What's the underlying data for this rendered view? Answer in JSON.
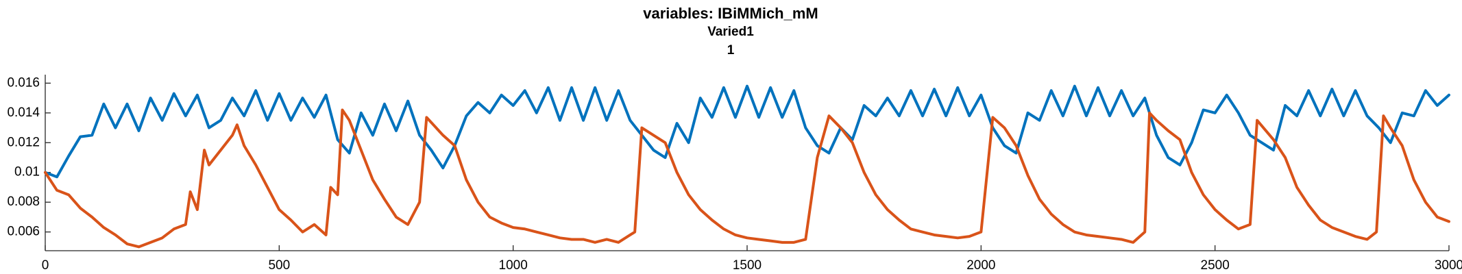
{
  "chart_data": {
    "type": "line",
    "title": "variables: IBiMMich_mM",
    "subtitles": [
      "Varied1",
      "1"
    ],
    "xlim": [
      0,
      3000
    ],
    "xticks": [
      0,
      500,
      1000,
      1500,
      2000,
      2500,
      3000
    ],
    "ylim": [
      0.00474,
      0.01657
    ],
    "yticks": [
      0.006,
      0.008,
      0.01,
      0.012,
      0.014,
      0.016
    ],
    "grid": false,
    "series": [
      {
        "color": "#0072BD",
        "x": [
          0,
          25,
          50,
          75,
          100,
          125,
          150,
          175,
          200,
          225,
          250,
          275,
          300,
          325,
          350,
          375,
          400,
          425,
          450,
          475,
          500,
          525,
          550,
          575,
          600,
          625,
          650,
          675,
          700,
          725,
          750,
          775,
          800,
          825,
          850,
          875,
          900,
          925,
          950,
          975,
          1000,
          1025,
          1050,
          1075,
          1100,
          1125,
          1150,
          1175,
          1200,
          1225,
          1250,
          1275,
          1300,
          1325,
          1350,
          1375,
          1400,
          1425,
          1450,
          1475,
          1500,
          1525,
          1550,
          1575,
          1600,
          1625,
          1650,
          1675,
          1700,
          1725,
          1750,
          1775,
          1800,
          1825,
          1850,
          1875,
          1900,
          1925,
          1950,
          1975,
          2000,
          2025,
          2050,
          2075,
          2100,
          2125,
          2150,
          2175,
          2200,
          2225,
          2250,
          2275,
          2300,
          2325,
          2350,
          2375,
          2400,
          2425,
          2450,
          2475,
          2500,
          2525,
          2550,
          2575,
          2600,
          2625,
          2650,
          2675,
          2700,
          2725,
          2750,
          2775,
          2800,
          2825,
          2850,
          2875,
          2900,
          2925,
          2950,
          2975,
          3000
        ],
        "values": [
          0.01,
          0.0097,
          0.0111,
          0.0124,
          0.0125,
          0.0146,
          0.013,
          0.0146,
          0.0128,
          0.015,
          0.0135,
          0.0153,
          0.0138,
          0.0152,
          0.013,
          0.0135,
          0.015,
          0.0138,
          0.0155,
          0.0135,
          0.0153,
          0.0135,
          0.015,
          0.0137,
          0.0152,
          0.0122,
          0.0113,
          0.014,
          0.0125,
          0.0146,
          0.0128,
          0.0148,
          0.0125,
          0.0115,
          0.0103,
          0.0118,
          0.0138,
          0.0147,
          0.014,
          0.0152,
          0.0145,
          0.0155,
          0.014,
          0.0157,
          0.0135,
          0.0157,
          0.0135,
          0.0157,
          0.0135,
          0.0155,
          0.0135,
          0.0125,
          0.0115,
          0.011,
          0.0133,
          0.012,
          0.015,
          0.0137,
          0.0157,
          0.0137,
          0.0158,
          0.0137,
          0.0157,
          0.0137,
          0.0155,
          0.013,
          0.0118,
          0.0113,
          0.013,
          0.0122,
          0.0145,
          0.0138,
          0.015,
          0.0138,
          0.0155,
          0.0138,
          0.0156,
          0.0138,
          0.0157,
          0.0138,
          0.0152,
          0.013,
          0.0118,
          0.0113,
          0.014,
          0.0135,
          0.0155,
          0.0138,
          0.0158,
          0.0138,
          0.0157,
          0.0138,
          0.0155,
          0.0138,
          0.015,
          0.0125,
          0.011,
          0.0105,
          0.012,
          0.0142,
          0.014,
          0.0152,
          0.014,
          0.0125,
          0.012,
          0.0115,
          0.0145,
          0.0138,
          0.0155,
          0.0138,
          0.0156,
          0.0138,
          0.0155,
          0.0138,
          0.013,
          0.012,
          0.014,
          0.0138,
          0.0155,
          0.0145,
          0.0152
        ]
      },
      {
        "color": "#D95319",
        "x": [
          0,
          25,
          50,
          75,
          100,
          125,
          150,
          175,
          200,
          225,
          250,
          275,
          300,
          310,
          325,
          340,
          350,
          375,
          400,
          410,
          425,
          450,
          475,
          500,
          525,
          550,
          575,
          600,
          610,
          625,
          635,
          650,
          675,
          700,
          725,
          750,
          775,
          800,
          815,
          850,
          875,
          900,
          925,
          950,
          975,
          1000,
          1025,
          1050,
          1075,
          1100,
          1125,
          1150,
          1175,
          1200,
          1225,
          1250,
          1260,
          1275,
          1300,
          1325,
          1350,
          1375,
          1400,
          1425,
          1450,
          1475,
          1500,
          1525,
          1550,
          1575,
          1600,
          1625,
          1650,
          1675,
          1700,
          1725,
          1750,
          1775,
          1800,
          1825,
          1850,
          1875,
          1900,
          1925,
          1950,
          1975,
          2000,
          2025,
          2050,
          2075,
          2100,
          2125,
          2150,
          2175,
          2200,
          2225,
          2250,
          2275,
          2300,
          2325,
          2350,
          2360,
          2375,
          2400,
          2425,
          2450,
          2475,
          2500,
          2525,
          2550,
          2575,
          2590,
          2625,
          2650,
          2675,
          2700,
          2725,
          2750,
          2775,
          2800,
          2825,
          2845,
          2860,
          2875,
          2900,
          2925,
          2950,
          2975,
          3000
        ],
        "values": [
          0.01,
          0.0088,
          0.0085,
          0.0076,
          0.007,
          0.0063,
          0.0058,
          0.0052,
          0.005,
          0.0053,
          0.0056,
          0.0062,
          0.0065,
          0.0087,
          0.0075,
          0.0115,
          0.0105,
          0.0115,
          0.0125,
          0.0132,
          0.0118,
          0.0105,
          0.009,
          0.0075,
          0.0068,
          0.006,
          0.0065,
          0.0058,
          0.009,
          0.0085,
          0.0142,
          0.0135,
          0.0115,
          0.0095,
          0.0082,
          0.007,
          0.0065,
          0.008,
          0.0137,
          0.0125,
          0.0118,
          0.0095,
          0.008,
          0.007,
          0.0066,
          0.0063,
          0.0062,
          0.006,
          0.0058,
          0.0056,
          0.0055,
          0.0055,
          0.0053,
          0.0055,
          0.0053,
          0.0058,
          0.006,
          0.013,
          0.0125,
          0.012,
          0.01,
          0.0085,
          0.0075,
          0.0068,
          0.0062,
          0.0058,
          0.0056,
          0.0055,
          0.0054,
          0.0053,
          0.0053,
          0.0055,
          0.011,
          0.0138,
          0.013,
          0.012,
          0.01,
          0.0085,
          0.0075,
          0.0068,
          0.0062,
          0.006,
          0.0058,
          0.0057,
          0.0056,
          0.0057,
          0.006,
          0.0137,
          0.013,
          0.0118,
          0.0098,
          0.0082,
          0.0072,
          0.0065,
          0.006,
          0.0058,
          0.0057,
          0.0056,
          0.0055,
          0.0053,
          0.006,
          0.014,
          0.0135,
          0.0128,
          0.0122,
          0.01,
          0.0085,
          0.0075,
          0.0068,
          0.0062,
          0.0065,
          0.0135,
          0.0122,
          0.011,
          0.009,
          0.0078,
          0.0068,
          0.0063,
          0.006,
          0.0057,
          0.0055,
          0.006,
          0.0138,
          0.013,
          0.0118,
          0.0095,
          0.008,
          0.007,
          0.0067
        ]
      }
    ]
  }
}
